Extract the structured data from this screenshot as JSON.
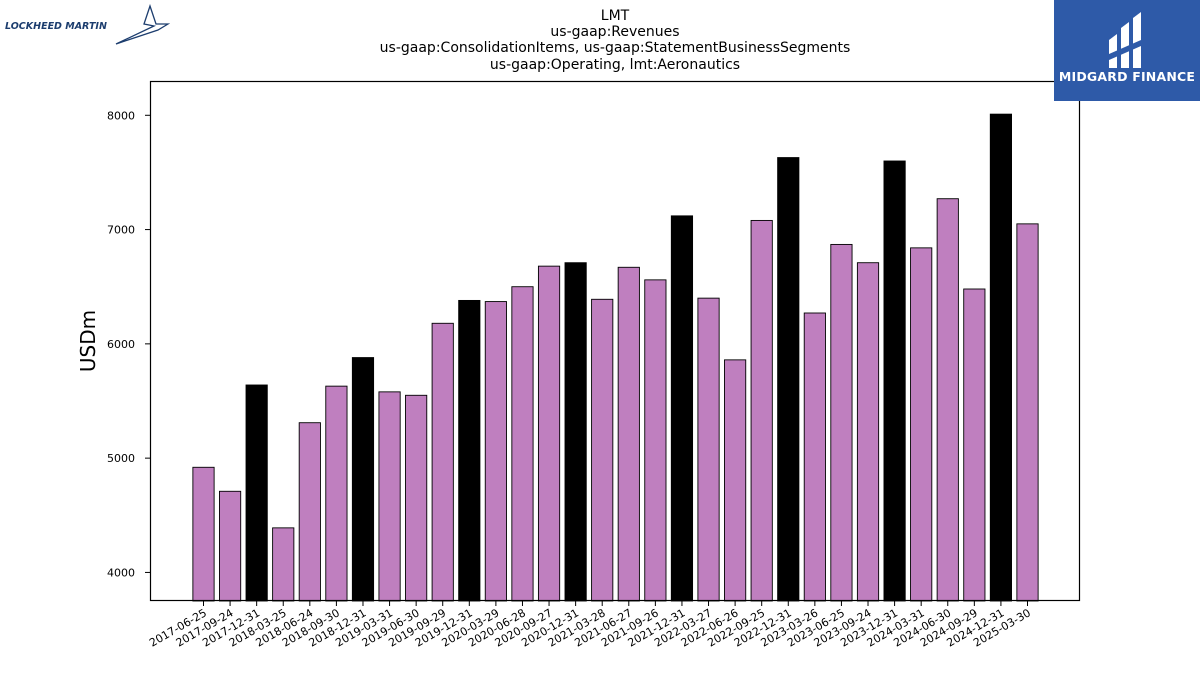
{
  "title_lines": [
    "LMT",
    "us-gaap:Revenues",
    "us-gaap:ConsolidationItems, us-gaap:StatementBusinessSegments",
    "us-gaap:Operating, lmt:Aeronautics"
  ],
  "logos": {
    "left_text": "LOCKHEED MARTIN",
    "right_text": "MIDGARD FINANCE",
    "right_bg_color": "#2e5aa8"
  },
  "colors": {
    "quarter_bar": "#bf7fbf",
    "year_end_bar": "#000000",
    "bar_edge": "#000000"
  },
  "chart_data": {
    "type": "bar",
    "ylabel": "USDm",
    "xlabel": "",
    "ylim": [
      3750,
      8300
    ],
    "yticks": [
      4000,
      5000,
      6000,
      7000,
      8000
    ],
    "grid": false,
    "legend": "none",
    "categories": [
      "2017-06-25",
      "2017-09-24",
      "2017-12-31",
      "2018-03-25",
      "2018-06-24",
      "2018-09-30",
      "2018-12-31",
      "2019-03-31",
      "2019-06-30",
      "2019-09-29",
      "2019-12-31",
      "2020-03-29",
      "2020-06-28",
      "2020-09-27",
      "2020-12-31",
      "2021-03-28",
      "2021-06-27",
      "2021-09-26",
      "2021-12-31",
      "2022-03-27",
      "2022-06-26",
      "2022-09-25",
      "2022-12-31",
      "2023-03-26",
      "2023-06-25",
      "2023-09-24",
      "2023-12-31",
      "2024-03-31",
      "2024-06-30",
      "2024-09-29",
      "2024-12-31",
      "2025-03-30"
    ],
    "values": [
      4920,
      4710,
      5640,
      4390,
      5310,
      5630,
      5880,
      5580,
      5550,
      6180,
      6380,
      6370,
      6500,
      6680,
      6710,
      6390,
      6670,
      6560,
      7120,
      6400,
      5860,
      7080,
      7630,
      6270,
      6870,
      6710,
      7600,
      6840,
      7270,
      6480,
      8010,
      7050
    ],
    "year_end": [
      false,
      false,
      true,
      false,
      false,
      false,
      true,
      false,
      false,
      false,
      true,
      false,
      false,
      false,
      true,
      false,
      false,
      false,
      true,
      false,
      false,
      false,
      true,
      false,
      false,
      false,
      true,
      false,
      false,
      false,
      true,
      false
    ]
  }
}
